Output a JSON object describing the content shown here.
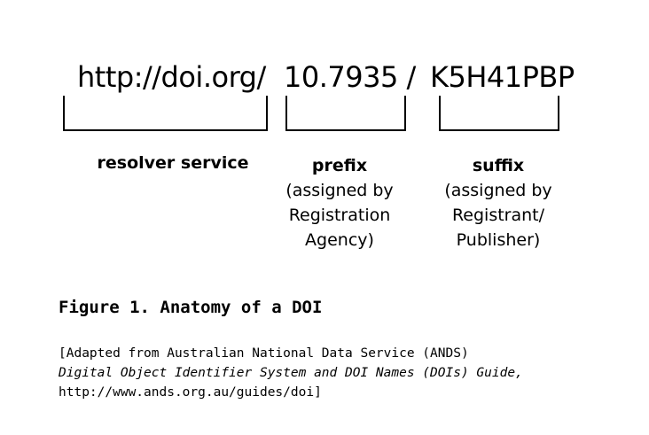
{
  "doi_parts": {
    "resolver": "http://doi.org/",
    "prefix": "10.7935 /",
    "suffix": "K5H41PBP"
  },
  "labels": {
    "resolver": {
      "title": "resolver service"
    },
    "prefix": {
      "title": "prefix",
      "note": "(assigned by\nRegistration\nAgency)"
    },
    "suffix": {
      "title": "suffix",
      "note": "(assigned by\nRegistrant/\nPublisher)"
    }
  },
  "caption": "Figure 1. Anatomy of a DOI",
  "citation": {
    "line1": "[Adapted from Australian National Data Service (ANDS)",
    "line2": "Digital Object Identifier System and DOI Names (DOIs) Guide,",
    "line3": "http://www.ands.org.au/guides/doi]"
  }
}
